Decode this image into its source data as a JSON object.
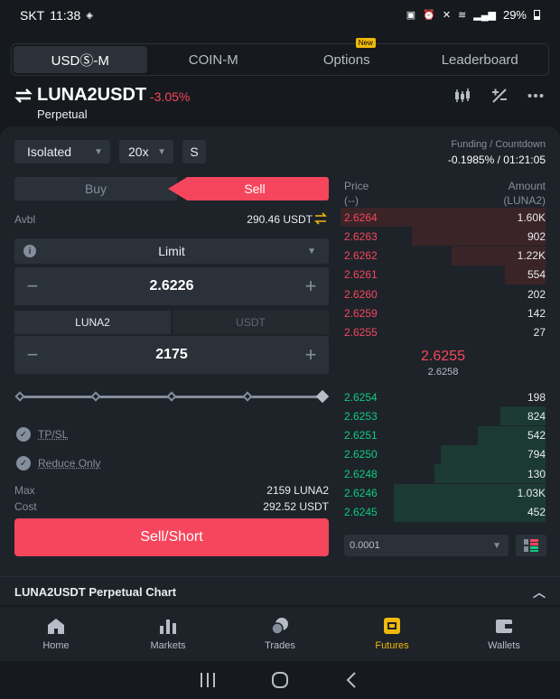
{
  "status_bar": {
    "carrier": "SKT",
    "time": "11:38",
    "battery": "29%"
  },
  "tabs": [
    {
      "label": "USDⓈ-M",
      "active": true
    },
    {
      "label": "COIN-M",
      "active": false
    },
    {
      "label": "Options",
      "badge": "New",
      "active": false
    },
    {
      "label": "Leaderboard",
      "active": false
    }
  ],
  "header": {
    "symbol": "LUNA2USDT",
    "change": "-3.05%",
    "type": "Perpetual"
  },
  "controls": {
    "margin_mode": "Isolated",
    "leverage": "20x",
    "mode_short": "S"
  },
  "funding": {
    "label": "Funding / Countdown",
    "value": "-0.1985% / 01:21:05"
  },
  "side_tabs": {
    "buy": "Buy",
    "sell": "Sell"
  },
  "avbl": {
    "label": "Avbl",
    "value": "290.46 USDT"
  },
  "order_type": "Limit",
  "price_input": "2.6226",
  "units": {
    "coin": "LUNA2",
    "quote": "USDT"
  },
  "amount_input": "2175",
  "options": {
    "tpsl": "TP/SL",
    "reduce_only": "Reduce Only"
  },
  "max": {
    "label": "Max",
    "value": "2159 LUNA2"
  },
  "cost": {
    "label": "Cost",
    "value": "292.52 USDT"
  },
  "sell_button": "Sell/Short",
  "orderbook": {
    "price_header": "Price",
    "price_unit": "(--)",
    "amount_header": "Amount",
    "amount_unit": "(LUNA2)",
    "asks": [
      {
        "price": "2.6264",
        "amount": "1.60K",
        "depth": 1.0
      },
      {
        "price": "2.6263",
        "amount": "902",
        "depth": 0.65
      },
      {
        "price": "2.6262",
        "amount": "1.22K",
        "depth": 0.46
      },
      {
        "price": "2.6261",
        "amount": "554",
        "depth": 0.2
      },
      {
        "price": "2.6260",
        "amount": "202",
        "depth": 0.0
      },
      {
        "price": "2.6259",
        "amount": "142",
        "depth": 0.0
      },
      {
        "price": "2.6255",
        "amount": "27",
        "depth": 0.0
      }
    ],
    "last_price": "2.6255",
    "mark_price": "2.6258",
    "bids": [
      {
        "price": "2.6254",
        "amount": "198",
        "depth": 0.0
      },
      {
        "price": "2.6253",
        "amount": "824",
        "depth": 0.22
      },
      {
        "price": "2.6251",
        "amount": "542",
        "depth": 0.33
      },
      {
        "price": "2.6250",
        "amount": "794",
        "depth": 0.51
      },
      {
        "price": "2.6248",
        "amount": "130",
        "depth": 0.54
      },
      {
        "price": "2.6246",
        "amount": "1.03K",
        "depth": 0.74
      },
      {
        "price": "2.6245",
        "amount": "452",
        "depth": 0.74
      }
    ],
    "precision": "0.0001"
  },
  "chart_bar": {
    "title": "LUNA2USDT Perpetual  Chart"
  },
  "bottom_nav": [
    {
      "label": "Home",
      "icon": "home-icon",
      "active": false
    },
    {
      "label": "Markets",
      "icon": "markets-icon",
      "active": false
    },
    {
      "label": "Trades",
      "icon": "trades-icon",
      "active": false
    },
    {
      "label": "Futures",
      "icon": "futures-icon",
      "active": true
    },
    {
      "label": "Wallets",
      "icon": "wallet-icon",
      "active": false
    }
  ],
  "colors": {
    "sell": "#f6465d",
    "buy": "#0ecb81",
    "accent": "#f0b90b",
    "bg": "#161a1e",
    "panel": "#1e2329"
  }
}
